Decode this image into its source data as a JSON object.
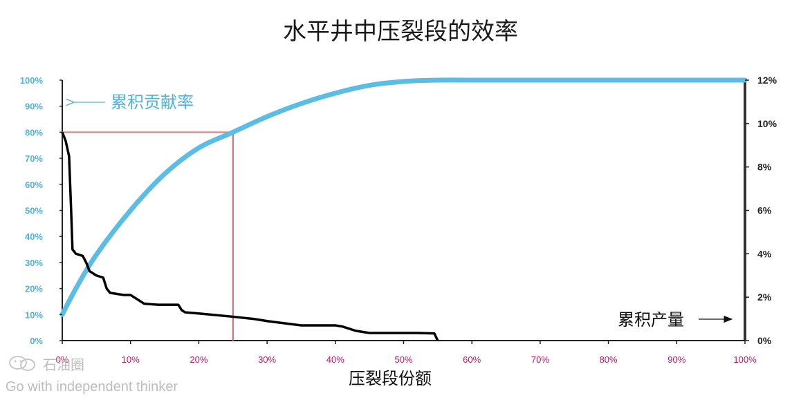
{
  "title": "水平井中压裂段的效率",
  "watermark": {
    "name": "石油圈",
    "tagline": "Go with independent thinker"
  },
  "chart_data": {
    "type": "line",
    "title": "水平井中压裂段的效率",
    "xlabel": "压裂段份额",
    "x_ticks": [
      "0%",
      "10%",
      "20%",
      "30%",
      "40%",
      "50%",
      "60%",
      "70%",
      "80%",
      "90%",
      "100%"
    ],
    "left_ticks": [
      "0%",
      "10%",
      "20%",
      "30%",
      "40%",
      "50%",
      "60%",
      "70%",
      "80%",
      "90%",
      "100%"
    ],
    "right_ticks": [
      "0%",
      "2%",
      "4%",
      "6%",
      "8%",
      "10%",
      "12%"
    ],
    "xlim": [
      0,
      100
    ],
    "ylim_left": [
      0,
      100
    ],
    "ylim_right": [
      0,
      12
    ],
    "grid": false,
    "series": [
      {
        "name": "累积贡献率",
        "axis": "left",
        "color": "#5bbde6",
        "x": [
          0,
          2,
          5,
          10,
          15,
          20,
          25,
          30,
          35,
          40,
          45,
          50,
          55,
          60,
          70,
          80,
          90,
          100
        ],
        "y": [
          10,
          20,
          33,
          50,
          64,
          74,
          80,
          86,
          91,
          95,
          98,
          99.5,
          100,
          100,
          100,
          100,
          100,
          100
        ]
      },
      {
        "name": "累积产量",
        "axis": "right",
        "color": "#000000",
        "x": [
          0,
          0.5,
          1,
          1.3,
          1.5,
          2,
          3,
          3.5,
          4,
          5,
          6,
          6.5,
          7,
          9,
          10,
          11,
          12,
          14,
          17,
          17.5,
          18,
          20,
          25,
          28,
          30,
          35,
          40,
          41,
          43,
          45,
          50,
          52,
          54.5,
          55
        ],
        "y": [
          9.6,
          9.2,
          8.5,
          6.0,
          4.2,
          4.0,
          3.9,
          3.6,
          3.2,
          3.0,
          2.9,
          2.4,
          2.2,
          2.1,
          2.1,
          1.9,
          1.7,
          1.65,
          1.65,
          1.4,
          1.3,
          1.25,
          1.1,
          1.0,
          0.9,
          0.7,
          0.7,
          0.65,
          0.45,
          0.35,
          0.35,
          0.35,
          0.33,
          0.0
        ]
      }
    ],
    "reference_lines": {
      "x": 25,
      "y_left": 80,
      "color": "#e67a7a"
    },
    "annotations": [
      {
        "text": "累积贡献率",
        "series": "累积贡献率",
        "color": "#4fb3dc"
      },
      {
        "text": "累积产量",
        "series": "累积产量",
        "color": "#111111"
      }
    ]
  }
}
